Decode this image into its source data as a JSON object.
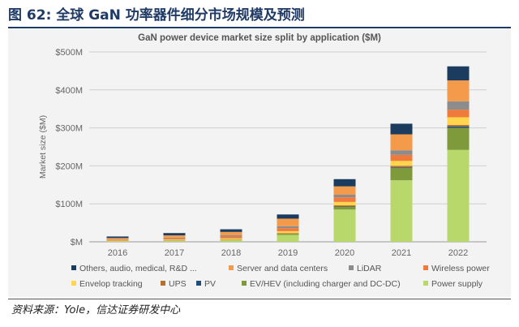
{
  "figure": {
    "title": "图 62: 全球 GaN 功率器件细分市场规模及预测",
    "source": "资料来源：Yole，信达证券研发中心"
  },
  "chart_data": {
    "type": "bar",
    "stacked": true,
    "title": "GaN power device market size split by application ($M)",
    "xlabel": "",
    "ylabel": "Market size ($M)",
    "ylim": [
      0,
      500
    ],
    "yticks": [
      0,
      100,
      200,
      300,
      400,
      500
    ],
    "ytick_labels": [
      "$M",
      "$100M",
      "$200M",
      "$300M",
      "$400M",
      "$500M"
    ],
    "categories": [
      "2016",
      "2017",
      "2018",
      "2019",
      "2020",
      "2021",
      "2022"
    ],
    "grid": true,
    "legend_position": "bottom",
    "series": [
      {
        "name": "Power supply",
        "color": "#b8d86b",
        "values": [
          2,
          3,
          4,
          18,
          85,
          162,
          242
        ]
      },
      {
        "name": "EV/HEV (including charger and DC-DC)",
        "color": "#7f9a3a",
        "values": [
          0,
          0,
          1,
          3,
          7,
          32,
          58
        ]
      },
      {
        "name": "PV",
        "color": "#1f4e79",
        "values": [
          0,
          0,
          0,
          0,
          1,
          2,
          4
        ]
      },
      {
        "name": "UPS",
        "color": "#b7702e",
        "values": [
          0,
          1,
          1,
          2,
          3,
          4,
          4
        ]
      },
      {
        "name": "Envelop tracking",
        "color": "#ffd54d",
        "values": [
          1,
          2,
          3,
          5,
          9,
          13,
          20
        ]
      },
      {
        "name": "Wireless power",
        "color": "#f07a3c",
        "values": [
          2,
          3,
          5,
          8,
          12,
          16,
          20
        ]
      },
      {
        "name": "LiDAR",
        "color": "#8c8c8c",
        "values": [
          1,
          2,
          3,
          5,
          7,
          12,
          22
        ]
      },
      {
        "name": "Server and data centers",
        "color": "#f39a4b",
        "values": [
          4,
          6,
          9,
          20,
          22,
          42,
          55
        ]
      },
      {
        "name": "Others, audio, medical, R&D ...",
        "color": "#1b3c5e",
        "values": [
          4,
          6,
          7,
          11,
          19,
          28,
          37
        ]
      }
    ],
    "legend_order": [
      "Others, audio, medical, R&D ...",
      "Server and data centers",
      "LiDAR",
      "Wireless power",
      "Envelop tracking",
      "UPS",
      "PV",
      "EV/HEV (including charger and DC-DC)",
      "Power supply"
    ]
  }
}
